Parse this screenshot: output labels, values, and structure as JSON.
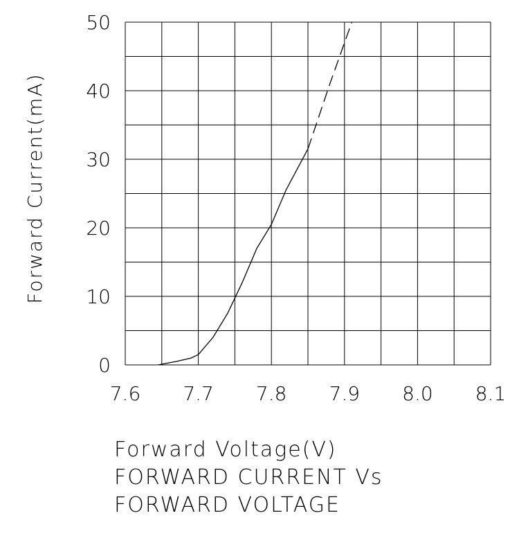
{
  "chart_data": {
    "type": "line",
    "xlabel": "Forward Voltage(V)",
    "ylabel": "Forward Current(mA)",
    "title_lines": [
      "FORWARD CURRENT Vs",
      "FORWARD VOLTAGE"
    ],
    "xlim": [
      7.6,
      8.1
    ],
    "ylim": [
      0,
      50
    ],
    "x_ticks": [
      "7.6",
      "7.7",
      "7.8",
      "7.9",
      "8.0",
      "8.1"
    ],
    "y_ticks": [
      "0",
      "10",
      "20",
      "30",
      "40",
      "50"
    ],
    "grid": true,
    "series": [
      {
        "style": "solid",
        "x": [
          7.645,
          7.67,
          7.69,
          7.7,
          7.72,
          7.74,
          7.76,
          7.78,
          7.8,
          7.82,
          7.85
        ],
        "y": [
          0,
          0.5,
          1.0,
          1.5,
          4.0,
          7.5,
          12.0,
          17.0,
          20.5,
          25.5,
          31.5
        ]
      },
      {
        "style": "dashed",
        "x": [
          7.85,
          7.88,
          7.91
        ],
        "y": [
          31.5,
          41.0,
          50.0
        ]
      }
    ]
  }
}
